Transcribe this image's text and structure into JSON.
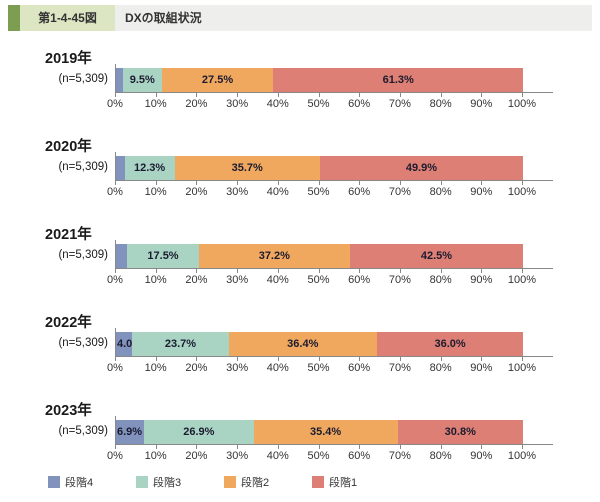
{
  "header": {
    "figure_label": "第1-4-45図",
    "title": "DXの取組状況"
  },
  "colors": {
    "accent_green": "#7d9e50",
    "figure_label_bg": "#dde6c3",
    "header_strip_bg": "#eeeeec",
    "stage4": "#8193bc",
    "stage3": "#a9d4c4",
    "stage2": "#f0a85e",
    "stage1": "#dd7f74",
    "axis": "#888888"
  },
  "chart_data": {
    "type": "bar",
    "variant": "horizontal-stacked",
    "unit": "%",
    "categories": [
      "2019年",
      "2020年",
      "2021年",
      "2022年",
      "2023年"
    ],
    "sample_size_label": "(n=5,309)",
    "series": [
      {
        "name": "段階4",
        "color": "#8193bc",
        "values": [
          1.7,
          2.1,
          2.8,
          4.0,
          6.9
        ],
        "labels": [
          "",
          "",
          "",
          "4.0%",
          "6.9%"
        ]
      },
      {
        "name": "段階3",
        "color": "#a9d4c4",
        "values": [
          9.5,
          12.3,
          17.5,
          23.7,
          26.9
        ],
        "labels": [
          "9.5%",
          "12.3%",
          "17.5%",
          "23.7%",
          "26.9%"
        ]
      },
      {
        "name": "段階2",
        "color": "#f0a85e",
        "values": [
          27.5,
          35.7,
          37.2,
          36.4,
          35.4
        ],
        "labels": [
          "27.5%",
          "35.7%",
          "37.2%",
          "36.4%",
          "35.4%"
        ]
      },
      {
        "name": "段階1",
        "color": "#dd7f74",
        "values": [
          61.3,
          49.9,
          42.5,
          36.0,
          30.8
        ],
        "labels": [
          "61.3%",
          "49.9%",
          "42.5%",
          "36.0%",
          "30.8%"
        ]
      }
    ],
    "x_ticks": [
      "0%",
      "10%",
      "20%",
      "30%",
      "40%",
      "50%",
      "60%",
      "70%",
      "80%",
      "90%",
      "100%"
    ],
    "xlim": [
      0,
      100
    ],
    "legend": [
      {
        "name": "段階4",
        "color": "#8193bc"
      },
      {
        "name": "段階3",
        "color": "#a9d4c4"
      },
      {
        "name": "段階2",
        "color": "#f0a85e"
      },
      {
        "name": "段階1",
        "color": "#dd7f74"
      }
    ],
    "legend_position": "bottom-left"
  }
}
